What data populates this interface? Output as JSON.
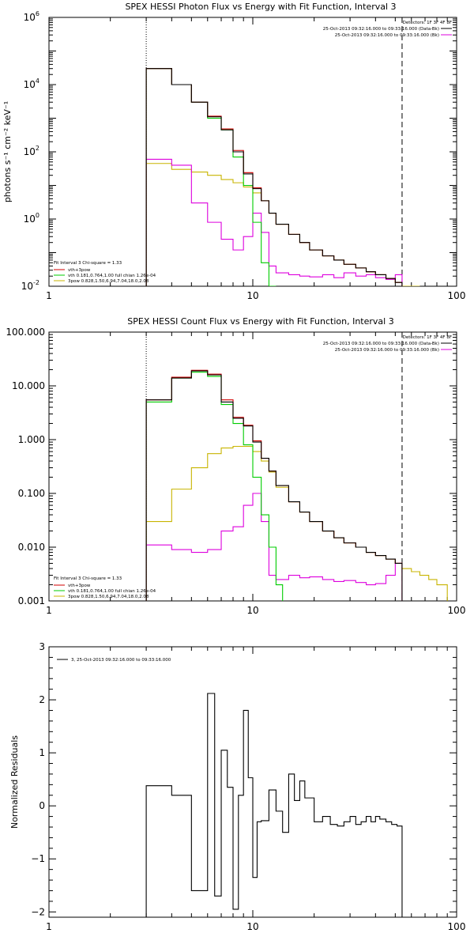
{
  "chart_data": [
    {
      "type": "line",
      "title": "SPEX HESSI Photon Flux vs Energy with Fit Function, Interval 3",
      "ylabel": "photons s⁻¹ cm⁻² keV⁻¹",
      "xlabel": "",
      "x_scale": "log",
      "y_scale": "log",
      "xlim": [
        1,
        100
      ],
      "ylim": [
        0.01,
        1000000
      ],
      "x_ticks": [
        {
          "v": 1,
          "label": "1"
        },
        {
          "v": 10,
          "label": "10"
        },
        {
          "v": 100,
          "label": "100"
        }
      ],
      "y_ticks": [
        {
          "v": 0.01,
          "label": "10",
          "exp": "-2"
        },
        {
          "v": 1,
          "label": "10",
          "exp": "0"
        },
        {
          "v": 100,
          "label": "10",
          "exp": "2"
        },
        {
          "v": 10000,
          "label": "10",
          "exp": "4"
        },
        {
          "v": 1000000,
          "label": "10",
          "exp": "6"
        }
      ],
      "vlines": [
        {
          "x": 3.0,
          "style": "dotted"
        },
        {
          "x": 54.0,
          "style": "dashed"
        }
      ],
      "header": {
        "detectors": "Detectors: 1F 3F 4F 8F",
        "data_line": "25-Oct-2013 09:32:16.000 to 09:33:16.000 (Data-Bk)",
        "bk_line": "25-Oct-2013 09:32:16.000 to 09:33:16.000 (Bk)"
      },
      "fit_info": {
        "line1": "Fit Interval 3   Chi-square = 1.33",
        "items": [
          {
            "label": "vth+3pow",
            "color": "#d00000"
          },
          {
            "label": "vth 0.181,0.764,1.00  full chian 1.26e-04",
            "color": "#00cc00"
          },
          {
            "label": "3pow 0.828,1.50,6.94,7.04,18.0,2.08",
            "color": "#c8b400"
          }
        ]
      },
      "series": [
        {
          "key": "data",
          "color": "#000000",
          "edges": [
            3,
            4,
            5,
            6,
            7,
            8,
            9,
            10,
            11,
            12,
            13,
            15,
            17,
            19,
            22,
            25,
            28,
            32,
            36,
            40,
            45,
            50,
            54
          ],
          "values": [
            30000,
            10000,
            3000,
            1100,
            450,
            100,
            22,
            8,
            3.5,
            1.5,
            0.7,
            0.35,
            0.2,
            0.12,
            0.08,
            0.06,
            0.045,
            0.035,
            0.027,
            0.022,
            0.017,
            0.013
          ]
        },
        {
          "key": "fit_total",
          "color": "#d00000",
          "edges": [
            3,
            4,
            5,
            6,
            7,
            8,
            9,
            10,
            11,
            12,
            13,
            15,
            17,
            19,
            22,
            25,
            28,
            32,
            36,
            40,
            45,
            50,
            54
          ],
          "values": [
            30000,
            10000,
            3000,
            1150,
            480,
            110,
            24,
            8.5,
            3.5,
            1.5,
            0.7,
            0.35,
            0.2,
            0.12,
            0.08,
            0.06,
            0.045,
            0.035,
            0.027,
            0.022,
            0.017,
            0.013
          ]
        },
        {
          "key": "vth",
          "color": "#00cc00",
          "edges": [
            3,
            4,
            5,
            6,
            7,
            8,
            9,
            10,
            11,
            12,
            13
          ],
          "values": [
            30000,
            10000,
            3000,
            1000,
            450,
            70,
            10,
            0.8,
            0.05,
            0.01
          ]
        },
        {
          "key": "3pow",
          "color": "#c8b400",
          "edges": [
            3,
            4,
            5,
            6,
            7,
            8,
            9,
            10,
            11,
            12,
            13,
            15,
            17,
            19,
            22,
            25,
            28,
            32,
            36,
            40,
            45,
            50,
            54,
            60,
            66
          ],
          "values": [
            45,
            30,
            25,
            20,
            15,
            12,
            9,
            6,
            3.5,
            1.5,
            0.7,
            0.35,
            0.2,
            0.12,
            0.08,
            0.06,
            0.045,
            0.035,
            0.027,
            0.022,
            0.017,
            0.013,
            0.01,
            0.01
          ]
        },
        {
          "key": "background",
          "color": "#dd00dd",
          "edges": [
            3,
            4,
            5,
            6,
            7,
            8,
            9,
            10,
            11,
            12,
            13,
            15,
            17,
            19,
            22,
            25,
            28,
            32,
            36,
            40,
            45,
            50,
            54
          ],
          "values": [
            60,
            40,
            3,
            0.8,
            0.25,
            0.12,
            0.3,
            1.5,
            0.4,
            0.04,
            0.025,
            0.022,
            0.02,
            0.019,
            0.022,
            0.018,
            0.025,
            0.02,
            0.022,
            0.018,
            0.016,
            0.022
          ]
        }
      ]
    },
    {
      "type": "line",
      "title": "SPEX HESSI Count Flux vs Energy with Fit Function, Interval 3",
      "ylabel": "",
      "xlabel": "",
      "x_scale": "log",
      "y_scale": "log",
      "xlim": [
        1,
        100
      ],
      "ylim": [
        0.001,
        100
      ],
      "x_ticks": [
        {
          "v": 1,
          "label": "1"
        },
        {
          "v": 10,
          "label": "10"
        },
        {
          "v": 100,
          "label": "100"
        }
      ],
      "y_ticks": [
        {
          "v": 0.001,
          "label": "0.001"
        },
        {
          "v": 0.01,
          "label": "0.010"
        },
        {
          "v": 0.1,
          "label": "0.100"
        },
        {
          "v": 1,
          "label": "1.000"
        },
        {
          "v": 10,
          "label": "10.000"
        },
        {
          "v": 100,
          "label": "100.000"
        }
      ],
      "vlines": [
        {
          "x": 3.0,
          "style": "dotted"
        },
        {
          "x": 54.0,
          "style": "dashed"
        }
      ],
      "header": {
        "detectors": "Detectors: 1F 3F 4F 8F",
        "data_line": "25-Oct-2013 09:32:16.000 to 09:33:16.000 (Data-Bk)",
        "bk_line": "25-Oct-2013 09:32:16.000 to 09:33:16.000 (Bk)"
      },
      "fit_info": {
        "line1": "Fit Interval 3   Chi-square = 1.33",
        "items": [
          {
            "label": "vth+3pow",
            "color": "#d00000"
          },
          {
            "label": "vth 0.181,0.764,1.00  full chian 1.26e-04",
            "color": "#00cc00"
          },
          {
            "label": "3pow 0.828,1.50,6.94,7.04,18.0,2.08",
            "color": "#c8b400"
          }
        ]
      },
      "series": [
        {
          "key": "data",
          "color": "#000000",
          "edges": [
            3,
            4,
            5,
            6,
            7,
            8,
            9,
            10,
            11,
            12,
            13,
            15,
            17,
            19,
            22,
            25,
            28,
            32,
            36,
            40,
            45,
            50,
            54
          ],
          "values": [
            5.5,
            14,
            19,
            16,
            5,
            2.5,
            1.8,
            0.9,
            0.45,
            0.26,
            0.14,
            0.07,
            0.045,
            0.03,
            0.02,
            0.015,
            0.012,
            0.01,
            0.008,
            0.007,
            0.006,
            0.005
          ]
        },
        {
          "key": "fit_total",
          "color": "#d00000",
          "edges": [
            3,
            4,
            5,
            6,
            7,
            8,
            9,
            10,
            11,
            12,
            13,
            15,
            17,
            19,
            22,
            25,
            28,
            32,
            36,
            40,
            45,
            50,
            54
          ],
          "values": [
            5.5,
            14.5,
            19.5,
            16.5,
            5.5,
            2.6,
            1.85,
            0.95,
            0.45,
            0.26,
            0.14,
            0.07,
            0.045,
            0.03,
            0.02,
            0.015,
            0.012,
            0.01,
            0.008,
            0.007,
            0.006,
            0.005
          ]
        },
        {
          "key": "vth",
          "color": "#00cc00",
          "edges": [
            3,
            4,
            5,
            6,
            7,
            8,
            9,
            10,
            11,
            12,
            13,
            14
          ],
          "values": [
            5,
            14,
            18,
            15,
            4.5,
            2,
            0.8,
            0.2,
            0.04,
            0.01,
            0.002
          ]
        },
        {
          "key": "3pow",
          "color": "#c8b400",
          "edges": [
            3,
            4,
            5,
            6,
            7,
            8,
            9,
            10,
            11,
            12,
            13,
            15,
            17,
            19,
            22,
            25,
            28,
            32,
            36,
            40,
            45,
            50,
            54,
            60,
            66,
            73,
            80,
            90
          ],
          "values": [
            0.03,
            0.12,
            0.3,
            0.55,
            0.7,
            0.75,
            0.75,
            0.6,
            0.4,
            0.25,
            0.13,
            0.07,
            0.045,
            0.03,
            0.02,
            0.015,
            0.012,
            0.01,
            0.008,
            0.007,
            0.006,
            0.005,
            0.004,
            0.0035,
            0.003,
            0.0025,
            0.002
          ]
        },
        {
          "key": "background",
          "color": "#dd00dd",
          "edges": [
            3,
            4,
            5,
            6,
            7,
            8,
            9,
            10,
            11,
            12,
            13,
            15,
            17,
            19,
            22,
            25,
            28,
            32,
            36,
            40,
            45,
            50,
            54
          ],
          "values": [
            0.011,
            0.009,
            0.008,
            0.009,
            0.02,
            0.024,
            0.06,
            0.1,
            0.03,
            0.003,
            0.0025,
            0.003,
            0.0027,
            0.0028,
            0.0025,
            0.0023,
            0.0024,
            0.0022,
            0.002,
            0.0021,
            0.003,
            0.005
          ]
        }
      ]
    },
    {
      "type": "line",
      "title": "",
      "ylabel": "Normalized Residuals",
      "xlabel": "",
      "x_scale": "log",
      "y_scale": "linear",
      "xlim": [
        1,
        100
      ],
      "ylim": [
        -2.1,
        3.0
      ],
      "x_ticks": [
        {
          "v": 1,
          "label": "1"
        },
        {
          "v": 10,
          "label": "10"
        },
        {
          "v": 100,
          "label": "100"
        }
      ],
      "y_ticks": [
        {
          "v": -2,
          "label": "−2"
        },
        {
          "v": -1,
          "label": "−1"
        },
        {
          "v": 0,
          "label": "0"
        },
        {
          "v": 1,
          "label": "1"
        },
        {
          "v": 2,
          "label": "2"
        },
        {
          "v": 3,
          "label": "3"
        }
      ],
      "legend": "3, 25-Oct-2013 09:32:16.000 to 09:33:16.000",
      "series": [
        {
          "key": "residuals",
          "color": "#000000",
          "edges": [
            3,
            4,
            5,
            6,
            6.5,
            7,
            7.5,
            8,
            8.5,
            9,
            9.5,
            10,
            10.5,
            11,
            12,
            13,
            14,
            15,
            16,
            17,
            18,
            20,
            22,
            24,
            26,
            28,
            30,
            32,
            34,
            36,
            38,
            40,
            42,
            45,
            48,
            51,
            54
          ],
          "values": [
            0.38,
            0.2,
            -1.6,
            2.12,
            -1.7,
            1.05,
            0.35,
            -1.95,
            0.2,
            1.8,
            0.53,
            -1.35,
            -0.3,
            -0.28,
            0.3,
            -0.1,
            -0.5,
            0.6,
            0.1,
            0.47,
            0.15,
            -0.3,
            -0.2,
            -0.35,
            -0.38,
            -0.3,
            -0.2,
            -0.35,
            -0.3,
            -0.2,
            -0.3,
            -0.2,
            -0.25,
            -0.3,
            -0.35,
            -0.38
          ]
        }
      ]
    }
  ]
}
